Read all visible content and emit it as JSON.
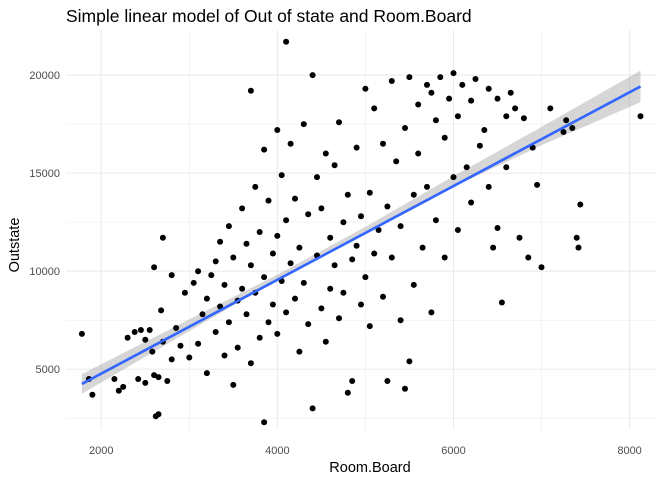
{
  "chart_data": {
    "type": "scatter",
    "title": "Simple linear model of Out of state and Room.Board",
    "xlabel": "Room.Board",
    "ylabel": "Outstate",
    "xlim": [
      1600,
      8300
    ],
    "ylim": [
      1900,
      22300
    ],
    "x_ticks": [
      2000,
      4000,
      6000,
      8000
    ],
    "x_tick_labels": [
      "2000",
      "4000",
      "6000",
      "8000"
    ],
    "y_ticks": [
      5000,
      10000,
      15000,
      20000
    ],
    "y_tick_labels": [
      "5000",
      "10000",
      "15000",
      "20000"
    ],
    "grid": true,
    "legend": "none",
    "colors": {
      "points": "#000000",
      "fit_line": "#3366FF",
      "ci_band": "#999999",
      "grid": "#ebebeb"
    },
    "fit": {
      "x": [
        1780,
        8124
      ],
      "y": [
        4250,
        19420
      ],
      "ci": [
        {
          "x": 1780,
          "lower": 3750,
          "upper": 4750
        },
        {
          "x": 4000,
          "lower": 9560,
          "upper": 9820
        },
        {
          "x": 5000,
          "lower": 11990,
          "upper": 12260
        },
        {
          "x": 6000,
          "lower": 14300,
          "upper": 14850
        },
        {
          "x": 7000,
          "lower": 16420,
          "upper": 17360
        },
        {
          "x": 8124,
          "lower": 18620,
          "upper": 20230
        }
      ]
    },
    "points": [
      [
        1780,
        6800
      ],
      [
        1860,
        4500
      ],
      [
        1900,
        3700
      ],
      [
        2150,
        4500
      ],
      [
        2200,
        3900
      ],
      [
        2250,
        4100
      ],
      [
        2300,
        6600
      ],
      [
        2380,
        6900
      ],
      [
        2420,
        4500
      ],
      [
        2450,
        7000
      ],
      [
        2500,
        4300
      ],
      [
        2500,
        6500
      ],
      [
        2550,
        7000
      ],
      [
        2580,
        5900
      ],
      [
        2600,
        4700
      ],
      [
        2600,
        10200
      ],
      [
        2620,
        2600
      ],
      [
        2650,
        2700
      ],
      [
        2650,
        4600
      ],
      [
        2680,
        8000
      ],
      [
        2700,
        11700
      ],
      [
        2700,
        6400
      ],
      [
        2750,
        4400
      ],
      [
        2800,
        5500
      ],
      [
        2800,
        9800
      ],
      [
        2850,
        7100
      ],
      [
        2900,
        6200
      ],
      [
        2950,
        8900
      ],
      [
        3000,
        5600
      ],
      [
        3050,
        9400
      ],
      [
        3100,
        10000
      ],
      [
        3100,
        6300
      ],
      [
        3150,
        7800
      ],
      [
        3200,
        4800
      ],
      [
        3200,
        8600
      ],
      [
        3250,
        9800
      ],
      [
        3300,
        10500
      ],
      [
        3300,
        6900
      ],
      [
        3350,
        11500
      ],
      [
        3350,
        8200
      ],
      [
        3400,
        5700
      ],
      [
        3400,
        9300
      ],
      [
        3450,
        12300
      ],
      [
        3450,
        7400
      ],
      [
        3500,
        4200
      ],
      [
        3500,
        10700
      ],
      [
        3550,
        8500
      ],
      [
        3550,
        6100
      ],
      [
        3600,
        13200
      ],
      [
        3600,
        9100
      ],
      [
        3650,
        7800
      ],
      [
        3650,
        11400
      ],
      [
        3700,
        19200
      ],
      [
        3700,
        5300
      ],
      [
        3700,
        10300
      ],
      [
        3750,
        14300
      ],
      [
        3750,
        8900
      ],
      [
        3800,
        6600
      ],
      [
        3800,
        12000
      ],
      [
        3850,
        16200
      ],
      [
        3850,
        9700
      ],
      [
        3850,
        2300
      ],
      [
        3900,
        7400
      ],
      [
        3900,
        13600
      ],
      [
        3950,
        10900
      ],
      [
        3950,
        8300
      ],
      [
        4000,
        17200
      ],
      [
        4000,
        11800
      ],
      [
        4000,
        6800
      ],
      [
        4050,
        9500
      ],
      [
        4050,
        14900
      ],
      [
        4100,
        21700
      ],
      [
        4100,
        12600
      ],
      [
        4100,
        7900
      ],
      [
        4150,
        10400
      ],
      [
        4150,
        16500
      ],
      [
        4200,
        8600
      ],
      [
        4200,
        13700
      ],
      [
        4250,
        11200
      ],
      [
        4250,
        5900
      ],
      [
        4300,
        17500
      ],
      [
        4300,
        9400
      ],
      [
        4350,
        12900
      ],
      [
        4350,
        7300
      ],
      [
        4400,
        20000
      ],
      [
        4400,
        3000
      ],
      [
        4450,
        10800
      ],
      [
        4450,
        14800
      ],
      [
        4500,
        8100
      ],
      [
        4500,
        13200
      ],
      [
        4550,
        16000
      ],
      [
        4550,
        6400
      ],
      [
        4600,
        11700
      ],
      [
        4600,
        9100
      ],
      [
        4650,
        15400
      ],
      [
        4650,
        10300
      ],
      [
        4700,
        17600
      ],
      [
        4700,
        7600
      ],
      [
        4750,
        12500
      ],
      [
        4750,
        8900
      ],
      [
        4800,
        3800
      ],
      [
        4800,
        13900
      ],
      [
        4850,
        10600
      ],
      [
        4850,
        4400
      ],
      [
        4900,
        16300
      ],
      [
        4900,
        11300
      ],
      [
        4950,
        8300
      ],
      [
        4950,
        12800
      ],
      [
        5000,
        19300
      ],
      [
        5000,
        9700
      ],
      [
        5050,
        14000
      ],
      [
        5050,
        7200
      ],
      [
        5100,
        10900
      ],
      [
        5100,
        18300
      ],
      [
        5150,
        12100
      ],
      [
        5200,
        16500
      ],
      [
        5200,
        8700
      ],
      [
        5250,
        4400
      ],
      [
        5250,
        13300
      ],
      [
        5300,
        19700
      ],
      [
        5300,
        10700
      ],
      [
        5350,
        15600
      ],
      [
        5400,
        12300
      ],
      [
        5400,
        7500
      ],
      [
        5450,
        17300
      ],
      [
        5450,
        4000
      ],
      [
        5500,
        19900
      ],
      [
        5500,
        5400
      ],
      [
        5550,
        13900
      ],
      [
        5550,
        9300
      ],
      [
        5600,
        18500
      ],
      [
        5600,
        16000
      ],
      [
        5650,
        11200
      ],
      [
        5700,
        19500
      ],
      [
        5700,
        14300
      ],
      [
        5750,
        19100
      ],
      [
        5750,
        7900
      ],
      [
        5800,
        17700
      ],
      [
        5800,
        12600
      ],
      [
        5850,
        19900
      ],
      [
        5900,
        16800
      ],
      [
        5900,
        10700
      ],
      [
        5950,
        18800
      ],
      [
        6000,
        20100
      ],
      [
        6000,
        14800
      ],
      [
        6050,
        17900
      ],
      [
        6050,
        12100
      ],
      [
        6100,
        19500
      ],
      [
        6150,
        15300
      ],
      [
        6200,
        18700
      ],
      [
        6200,
        13500
      ],
      [
        6250,
        19800
      ],
      [
        6300,
        16400
      ],
      [
        6350,
        17200
      ],
      [
        6400,
        19300
      ],
      [
        6400,
        14300
      ],
      [
        6450,
        11200
      ],
      [
        6500,
        18800
      ],
      [
        6500,
        12200
      ],
      [
        6550,
        8400
      ],
      [
        6600,
        17900
      ],
      [
        6600,
        15300
      ],
      [
        6650,
        19100
      ],
      [
        6700,
        18300
      ],
      [
        6750,
        11700
      ],
      [
        6800,
        17800
      ],
      [
        6850,
        10700
      ],
      [
        6900,
        16300
      ],
      [
        6950,
        14400
      ],
      [
        7000,
        10200
      ],
      [
        7100,
        18300
      ],
      [
        7250,
        17100
      ],
      [
        7280,
        17700
      ],
      [
        7350,
        17300
      ],
      [
        7400,
        11700
      ],
      [
        7420,
        11200
      ],
      [
        7440,
        13400
      ],
      [
        8124,
        17900
      ]
    ]
  }
}
